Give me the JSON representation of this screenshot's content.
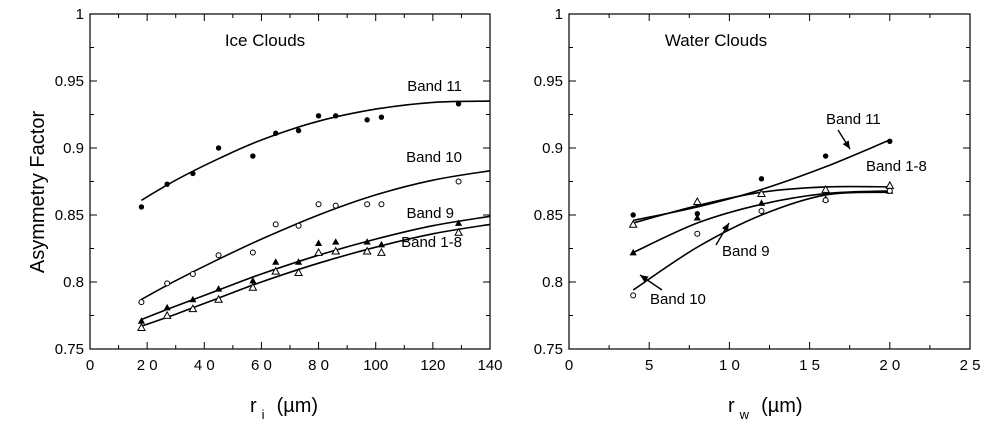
{
  "chart_data": [
    {
      "type": "scatter",
      "title": "Ice Clouds",
      "xlabel_main": "r",
      "xlabel_sub": "i",
      "xlabel_unit": "(µm)",
      "ylabel": "Asymmetry   Factor",
      "xlim": [
        0,
        140
      ],
      "ylim": [
        0.75,
        1.0
      ],
      "x_ticks": [
        "0",
        "2 0",
        "4 0",
        "6 0",
        "8 0",
        "100",
        "120",
        "140"
      ],
      "x_tick_values": [
        0,
        20,
        40,
        60,
        80,
        100,
        120,
        140
      ],
      "y_ticks": [
        "0.75",
        "0.8",
        "0.85",
        "0.9",
        "0.95",
        "1"
      ],
      "y_tick_values": [
        0.75,
        0.8,
        0.85,
        0.9,
        0.95,
        1.0
      ],
      "series": [
        {
          "name": "Band 11",
          "marker": "filled-circle",
          "points": [
            [
              18,
              0.856
            ],
            [
              27,
              0.873
            ],
            [
              36,
              0.881
            ],
            [
              45,
              0.9
            ],
            [
              57,
              0.894
            ],
            [
              65,
              0.911
            ],
            [
              73,
              0.913
            ],
            [
              80,
              0.924
            ],
            [
              86,
              0.924
            ],
            [
              97,
              0.921
            ],
            [
              102,
              0.923
            ],
            [
              129,
              0.933
            ]
          ],
          "fit": [
            [
              18,
              0.861
            ],
            [
              30,
              0.876
            ],
            [
              45,
              0.892
            ],
            [
              60,
              0.906
            ],
            [
              80,
              0.92
            ],
            [
              100,
              0.929
            ],
            [
              120,
              0.934
            ],
            [
              140,
              0.935
            ]
          ]
        },
        {
          "name": "Band 10",
          "marker": "open-circle",
          "points": [
            [
              18,
              0.785
            ],
            [
              27,
              0.799
            ],
            [
              36,
              0.806
            ],
            [
              45,
              0.82
            ],
            [
              57,
              0.822
            ],
            [
              65,
              0.843
            ],
            [
              73,
              0.842
            ],
            [
              80,
              0.858
            ],
            [
              86,
              0.857
            ],
            [
              97,
              0.858
            ],
            [
              102,
              0.858
            ],
            [
              129,
              0.875
            ]
          ],
          "fit": [
            [
              18,
              0.787
            ],
            [
              30,
              0.801
            ],
            [
              45,
              0.817
            ],
            [
              60,
              0.832
            ],
            [
              80,
              0.85
            ],
            [
              100,
              0.865
            ],
            [
              120,
              0.876
            ],
            [
              140,
              0.883
            ]
          ]
        },
        {
          "name": "Band 9",
          "marker": "filled-triangle",
          "points": [
            [
              18,
              0.771
            ],
            [
              27,
              0.781
            ],
            [
              36,
              0.787
            ],
            [
              45,
              0.795
            ],
            [
              57,
              0.801
            ],
            [
              65,
              0.815
            ],
            [
              73,
              0.815
            ],
            [
              80,
              0.829
            ],
            [
              86,
              0.83
            ],
            [
              97,
              0.83
            ],
            [
              102,
              0.828
            ],
            [
              129,
              0.844
            ]
          ],
          "fit": [
            [
              18,
              0.772
            ],
            [
              30,
              0.782
            ],
            [
              45,
              0.794
            ],
            [
              60,
              0.806
            ],
            [
              80,
              0.82
            ],
            [
              100,
              0.832
            ],
            [
              120,
              0.842
            ],
            [
              140,
              0.849
            ]
          ]
        },
        {
          "name": "Band  1-8",
          "marker": "open-triangle",
          "points": [
            [
              18,
              0.766
            ],
            [
              27,
              0.775
            ],
            [
              36,
              0.78
            ],
            [
              45,
              0.787
            ],
            [
              57,
              0.796
            ],
            [
              65,
              0.808
            ],
            [
              73,
              0.807
            ],
            [
              80,
              0.822
            ],
            [
              86,
              0.823
            ],
            [
              97,
              0.823
            ],
            [
              102,
              0.822
            ],
            [
              129,
              0.837
            ]
          ],
          "fit": [
            [
              18,
              0.767
            ],
            [
              30,
              0.776
            ],
            [
              45,
              0.788
            ],
            [
              60,
              0.8
            ],
            [
              80,
              0.814
            ],
            [
              100,
              0.826
            ],
            [
              120,
              0.836
            ],
            [
              140,
              0.843
            ]
          ]
        }
      ]
    },
    {
      "type": "scatter",
      "title": "Water Clouds",
      "xlabel_main": "r",
      "xlabel_sub": "w",
      "xlabel_unit": "(µm)",
      "xlim": [
        0,
        25
      ],
      "ylim": [
        0.75,
        1.0
      ],
      "x_ticks": [
        "0",
        "5",
        "1 0",
        "1 5",
        "2 0",
        "2 5"
      ],
      "x_tick_values": [
        0,
        5,
        10,
        15,
        20,
        25
      ],
      "y_ticks": [
        "0.75",
        "0.8",
        "0.85",
        "0.9",
        "0.95",
        "1"
      ],
      "y_tick_values": [
        0.75,
        0.8,
        0.85,
        0.9,
        0.95,
        1.0
      ],
      "series": [
        {
          "name": "Band 11",
          "marker": "filled-circle",
          "points": [
            [
              4,
              0.85
            ],
            [
              8,
              0.851
            ],
            [
              12,
              0.877
            ],
            [
              16,
              0.894
            ],
            [
              20,
              0.905
            ]
          ],
          "fit": [
            [
              4,
              0.846
            ],
            [
              8,
              0.856
            ],
            [
              12,
              0.869
            ],
            [
              16,
              0.886
            ],
            [
              20,
              0.906
            ]
          ]
        },
        {
          "name": "Band  1-8",
          "marker": "open-triangle",
          "points": [
            [
              4,
              0.843
            ],
            [
              8,
              0.86
            ],
            [
              12,
              0.866
            ],
            [
              16,
              0.869
            ],
            [
              20,
              0.872
            ]
          ],
          "fit": [
            [
              4,
              0.844
            ],
            [
              8,
              0.857
            ],
            [
              12,
              0.867
            ],
            [
              16,
              0.871
            ],
            [
              20,
              0.871
            ]
          ]
        },
        {
          "name": "Band 9",
          "marker": "filled-triangle",
          "points": [
            [
              4,
              0.822
            ],
            [
              8,
              0.848
            ],
            [
              12,
              0.859
            ],
            [
              16,
              0.862
            ],
            [
              20,
              0.868
            ]
          ],
          "fit": [
            [
              4,
              0.822
            ],
            [
              8,
              0.844
            ],
            [
              12,
              0.858
            ],
            [
              16,
              0.866
            ],
            [
              20,
              0.868
            ]
          ]
        },
        {
          "name": "Band 10",
          "marker": "open-circle",
          "points": [
            [
              4,
              0.79
            ],
            [
              8,
              0.836
            ],
            [
              12,
              0.853
            ],
            [
              16,
              0.861
            ],
            [
              20,
              0.868
            ]
          ],
          "fit": [
            [
              4,
              0.794
            ],
            [
              8,
              0.826
            ],
            [
              12,
              0.85
            ],
            [
              16,
              0.865
            ],
            [
              20,
              0.867
            ]
          ]
        }
      ]
    }
  ]
}
